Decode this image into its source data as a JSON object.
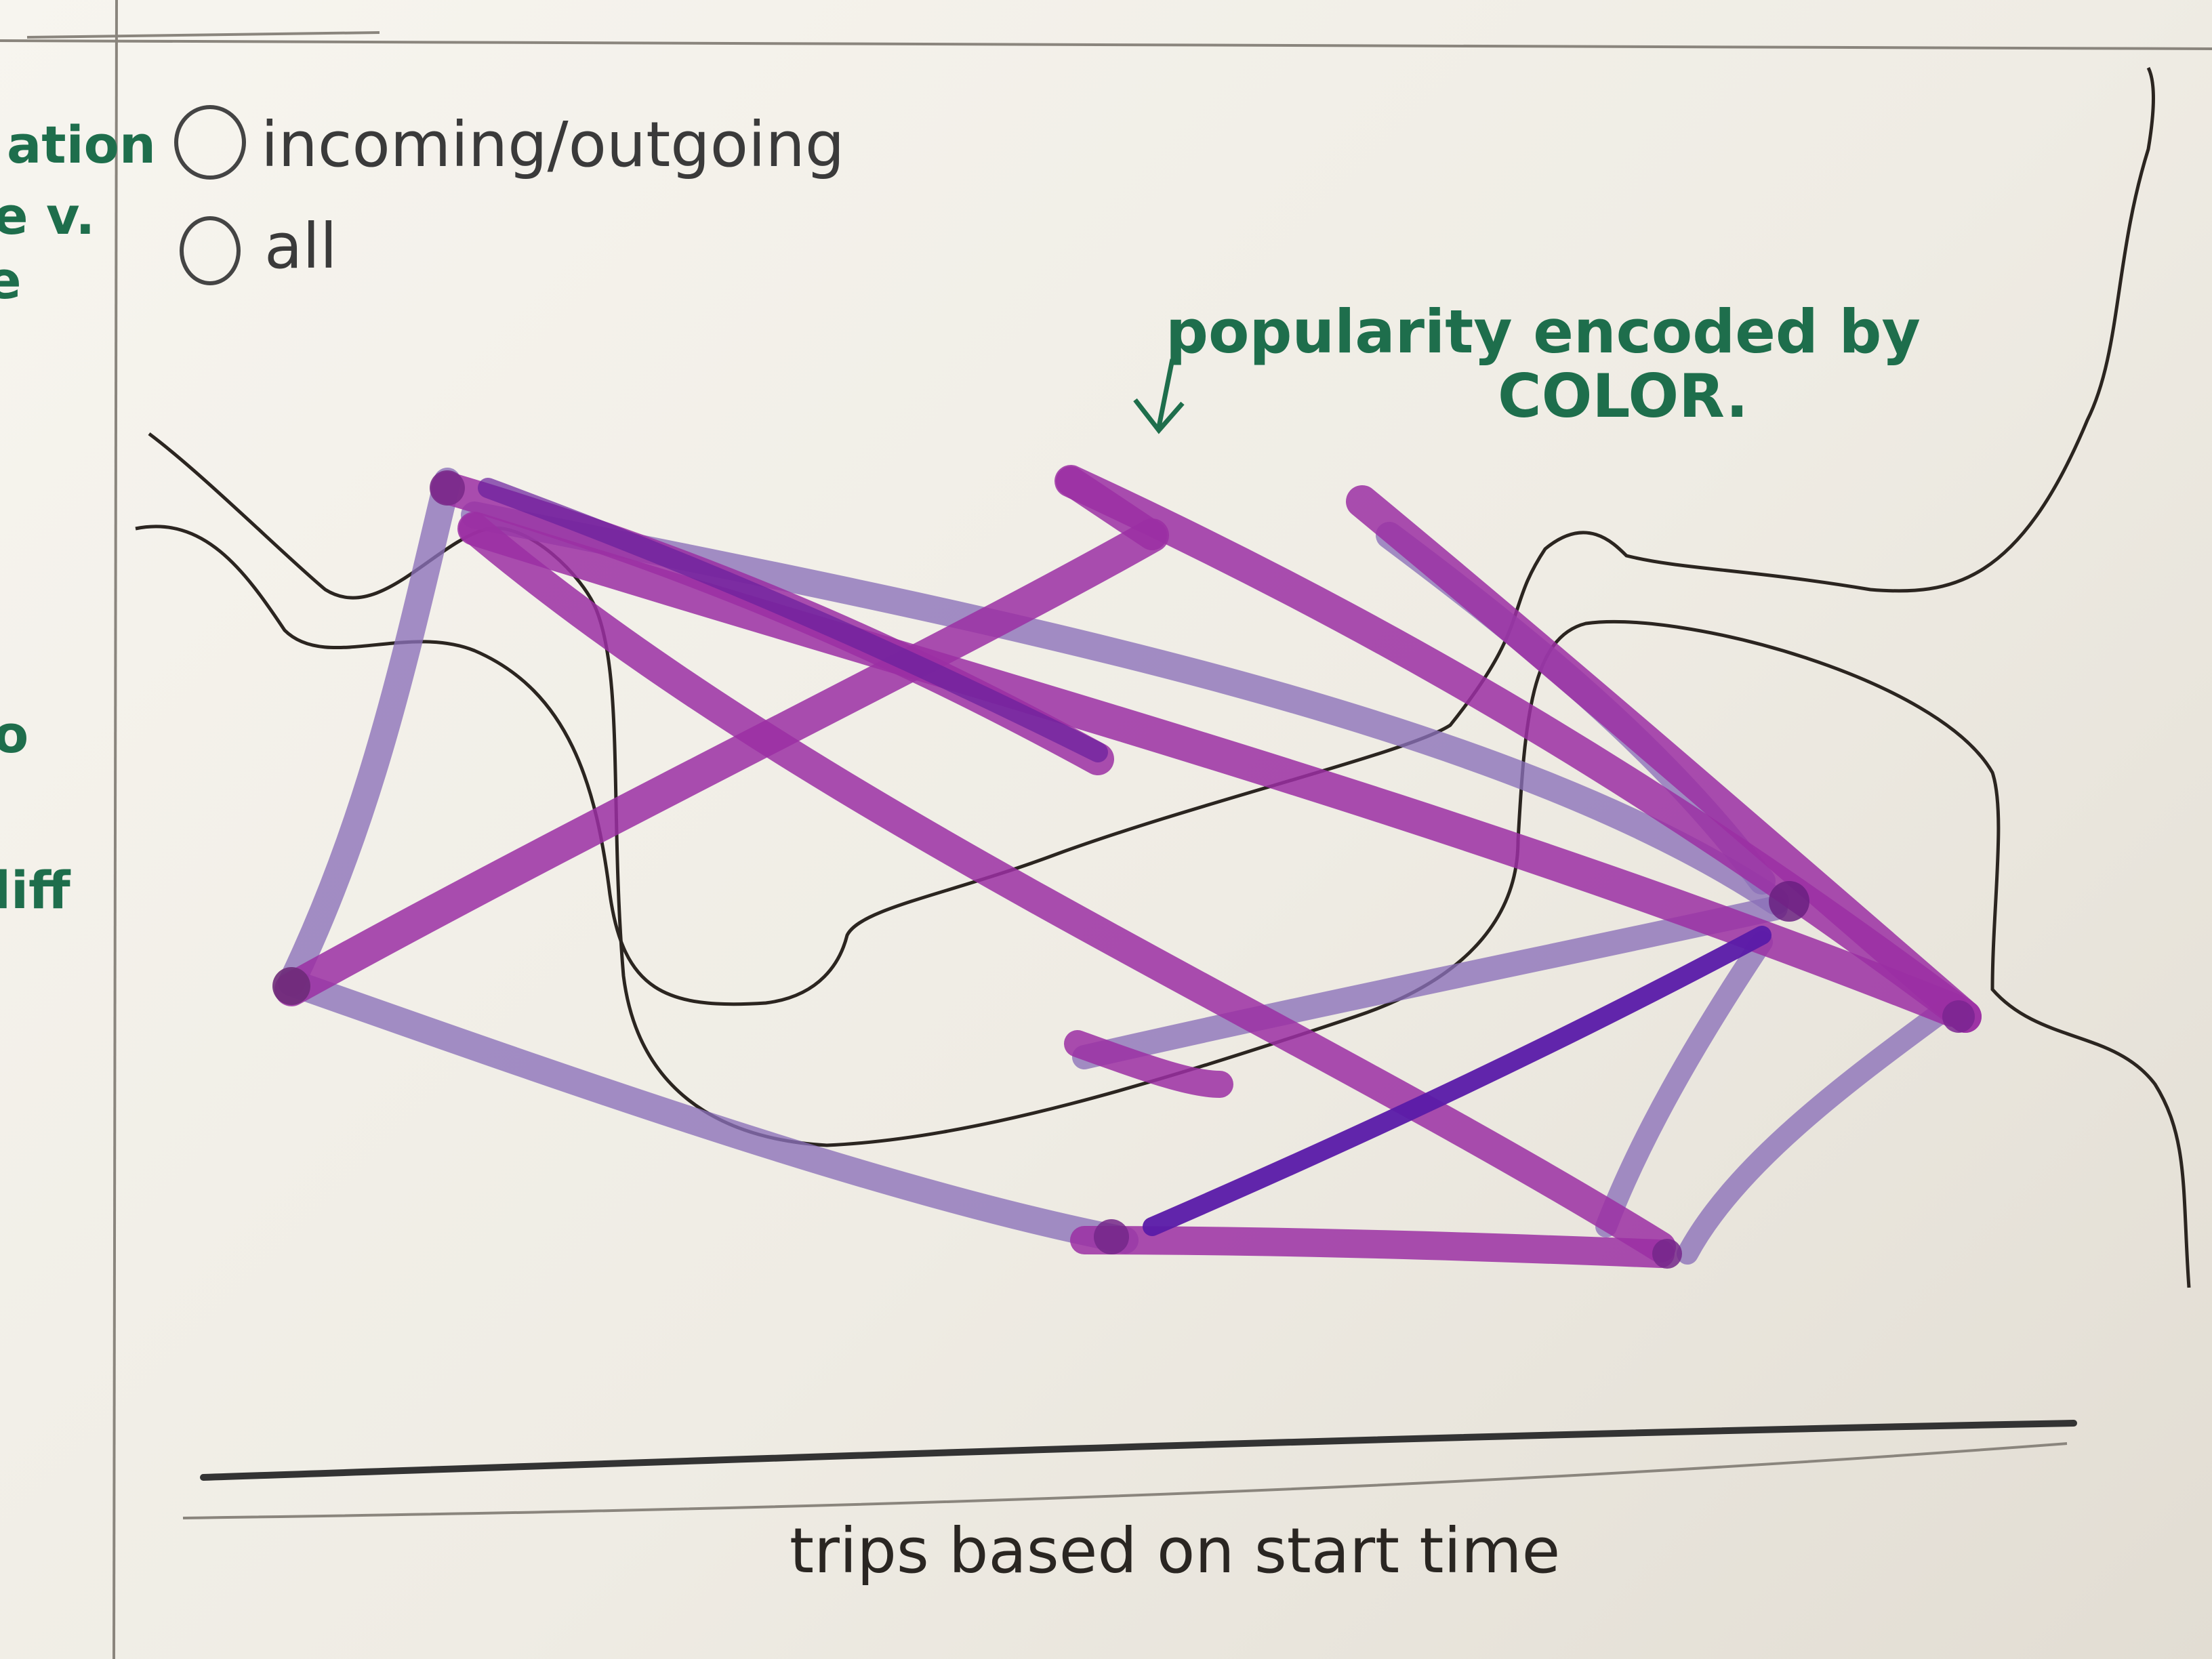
{
  "filters": {
    "option_incoming_outgoing": "incoming/outgoing",
    "option_all": "all"
  },
  "margin_fragments": [
    "ation",
    "e v.",
    "e",
    "o",
    "liff"
  ],
  "annotation": {
    "line1": "popularity encoded by",
    "line2": "COLOR."
  },
  "timeline": {
    "label": "trips based on start time"
  },
  "colors": {
    "marker_magenta": "#9b2fa3",
    "marker_lavender": "#8a6fb8",
    "marker_violet": "#5a1aa8",
    "annotation_ink": "#1e6e4c"
  }
}
